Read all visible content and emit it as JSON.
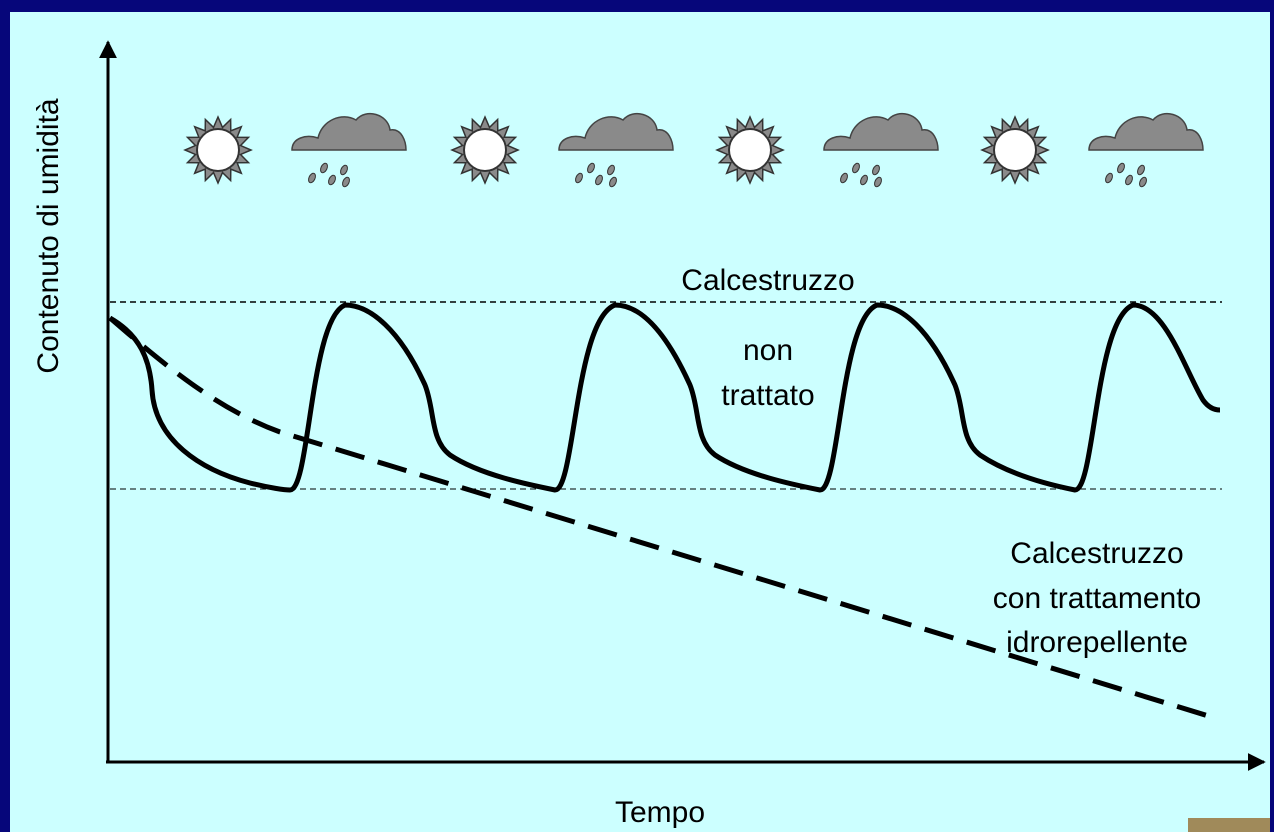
{
  "axes": {
    "y_label": "Contenuto di umidità",
    "x_label": "Tempo"
  },
  "curves": {
    "untreated": {
      "label_lines": [
        "Calcestruzzo",
        "non",
        "trattato"
      ]
    },
    "treated": {
      "label_lines": [
        "Calcestruzzo",
        "con trattamento",
        "idrorepellente"
      ]
    }
  }
}
